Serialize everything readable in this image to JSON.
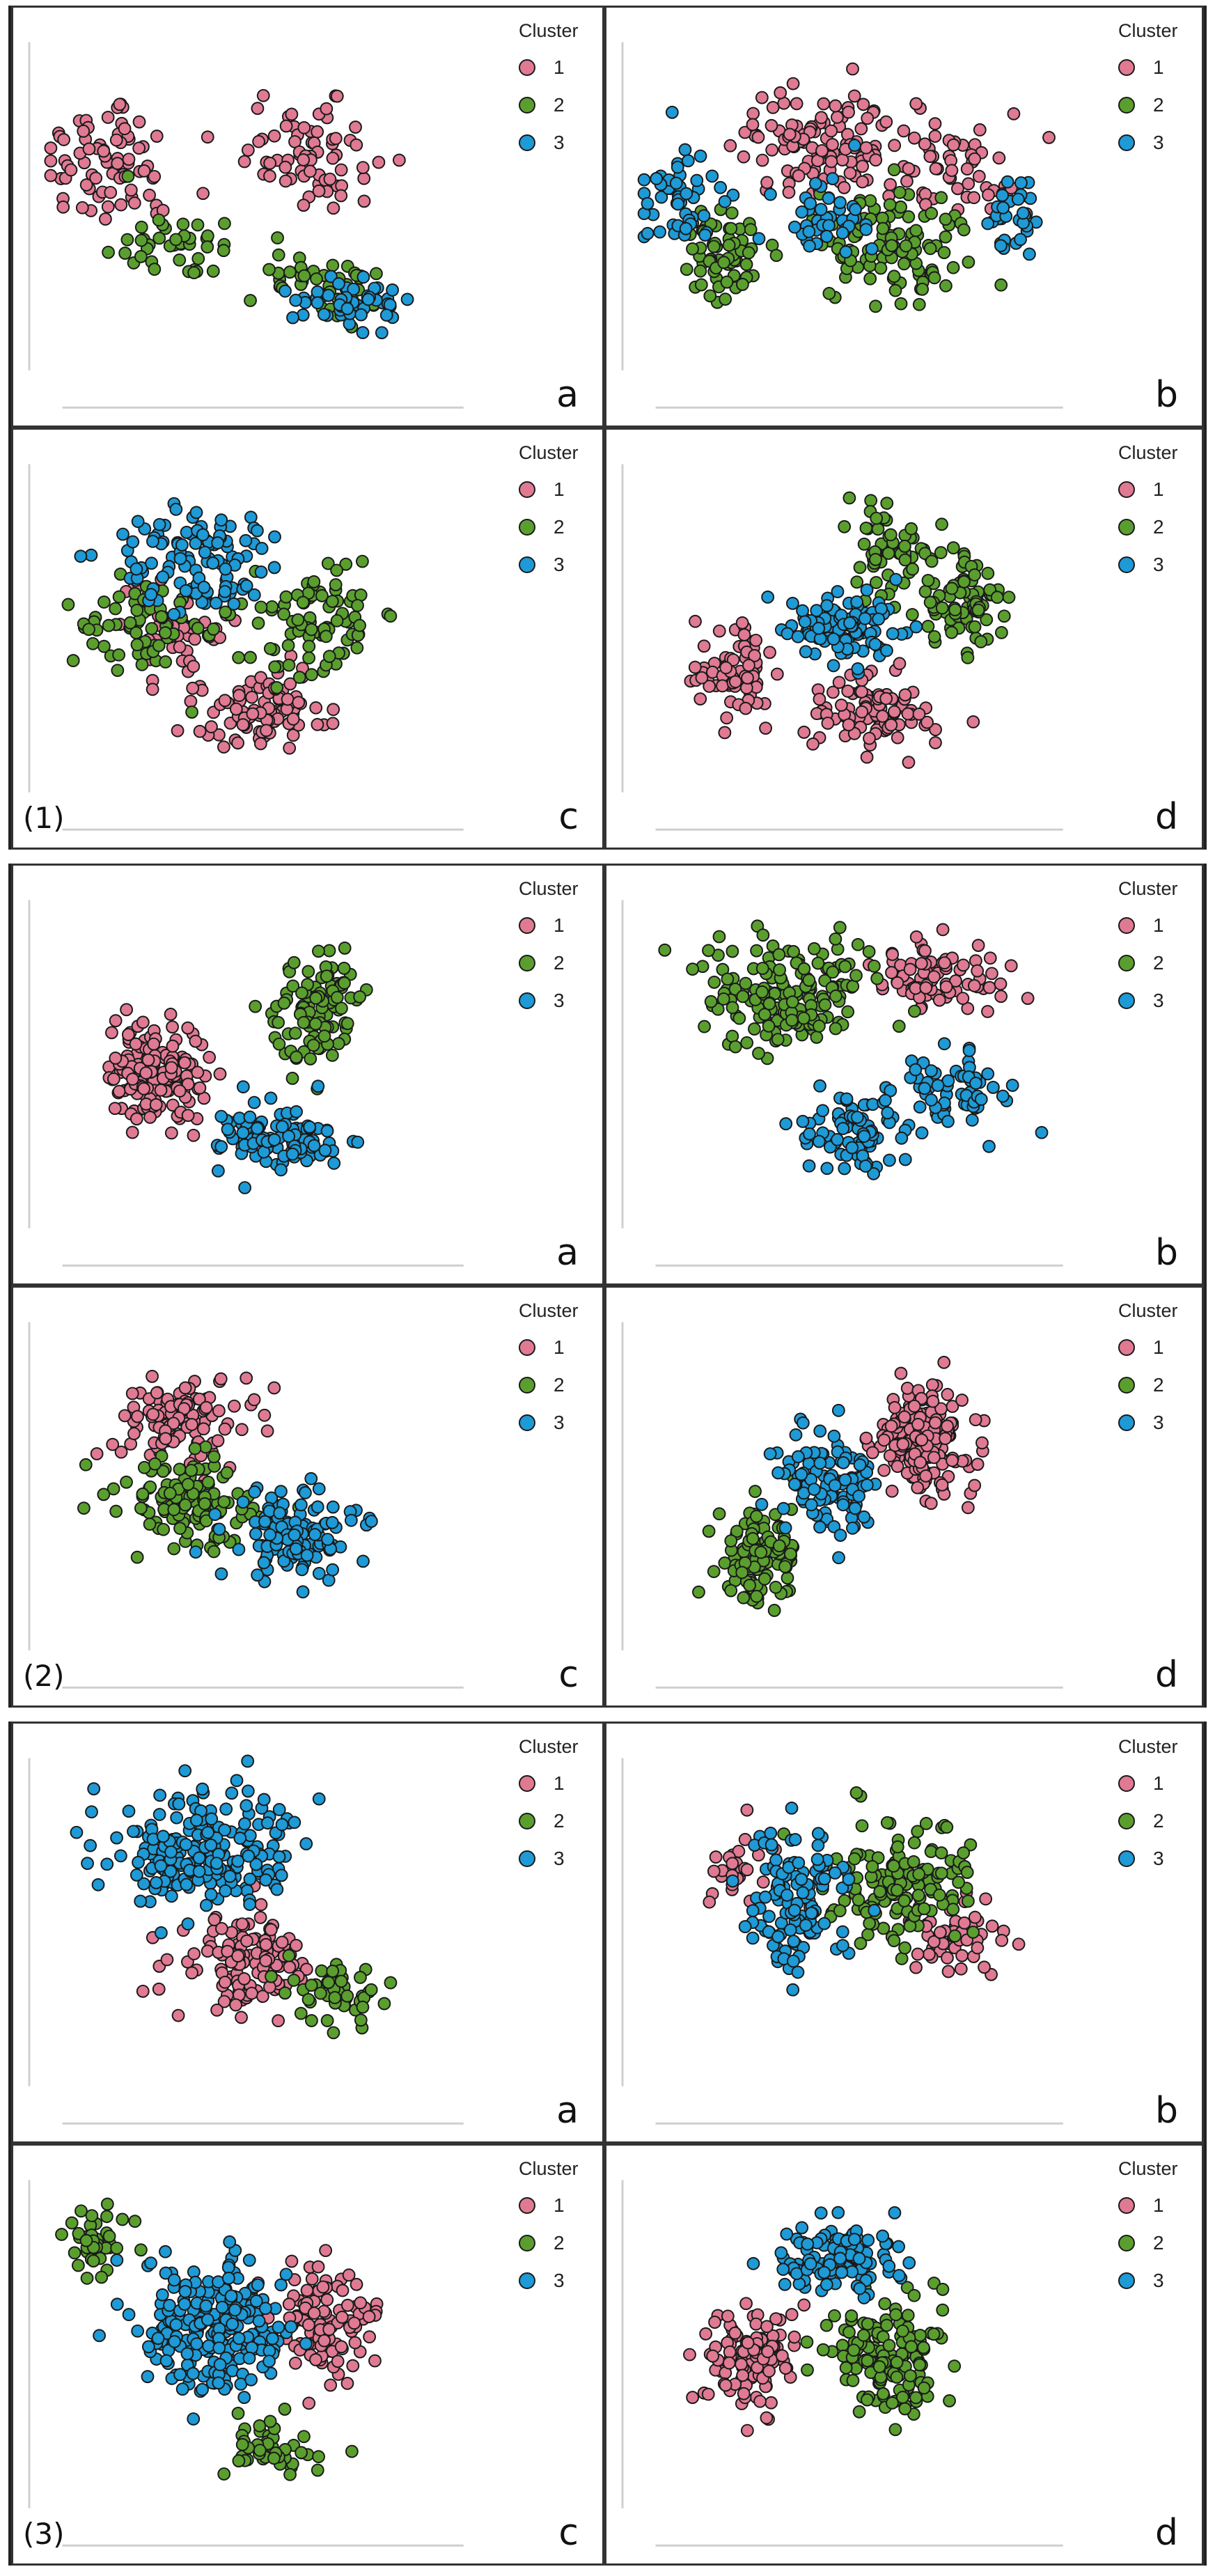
{
  "legend": {
    "title": "Cluster",
    "items": [
      {
        "label": "1",
        "color": "#e07a93"
      },
      {
        "label": "2",
        "color": "#5a9f2e"
      },
      {
        "label": "3",
        "color": "#1e9ad6"
      }
    ]
  },
  "groups": [
    {
      "label": "(1)",
      "panels": [
        {
          "letter": "a"
        },
        {
          "letter": "b"
        },
        {
          "letter": "c"
        },
        {
          "letter": "d"
        }
      ]
    },
    {
      "label": "(2)",
      "panels": [
        {
          "letter": "a"
        },
        {
          "letter": "b"
        },
        {
          "letter": "c"
        },
        {
          "letter": "d"
        }
      ]
    },
    {
      "label": "(3)",
      "panels": [
        {
          "letter": "a"
        },
        {
          "letter": "b"
        },
        {
          "letter": "c"
        },
        {
          "letter": "d"
        }
      ]
    }
  ],
  "chart_data": {
    "type": "scatter",
    "description_clusters": [
      "1",
      "2",
      "3"
    ],
    "panels": [
      {
        "group": "(1)",
        "letter": "a",
        "series": [
          {
            "name": "1",
            "blobs": [
              [
                0.15,
                0.37,
                0.14,
                0.18,
                75
              ],
              [
                0.58,
                0.35,
                0.16,
                0.18,
                70
              ]
            ]
          },
          {
            "name": "2",
            "blobs": [
              [
                0.3,
                0.62,
                0.13,
                0.09,
                40
              ],
              [
                0.62,
                0.72,
                0.12,
                0.1,
                45
              ]
            ]
          },
          {
            "name": "3",
            "blobs": [
              [
                0.67,
                0.78,
                0.1,
                0.07,
                50
              ]
            ]
          }
        ]
      },
      {
        "group": "(1)",
        "letter": "b",
        "series": [
          {
            "name": "1",
            "blobs": [
              [
                0.4,
                0.32,
                0.14,
                0.14,
                110
              ],
              [
                0.68,
                0.38,
                0.14,
                0.13,
                60
              ]
            ]
          },
          {
            "name": "2",
            "blobs": [
              [
                0.2,
                0.63,
                0.1,
                0.13,
                60
              ],
              [
                0.56,
                0.62,
                0.14,
                0.15,
                110
              ]
            ]
          },
          {
            "name": "3",
            "blobs": [
              [
                0.1,
                0.48,
                0.07,
                0.12,
                50
              ],
              [
                0.4,
                0.52,
                0.1,
                0.12,
                40
              ],
              [
                0.82,
                0.52,
                0.08,
                0.1,
                30
              ]
            ]
          }
        ]
      },
      {
        "group": "(1)",
        "letter": "c",
        "series": [
          {
            "name": "1",
            "blobs": [
              [
                0.3,
                0.52,
                0.1,
                0.12,
                50
              ],
              [
                0.48,
                0.74,
                0.13,
                0.11,
                90
              ]
            ]
          },
          {
            "name": "2",
            "blobs": [
              [
                0.22,
                0.5,
                0.12,
                0.13,
                60
              ],
              [
                0.6,
                0.48,
                0.13,
                0.17,
                90
              ]
            ]
          },
          {
            "name": "3",
            "blobs": [
              [
                0.35,
                0.3,
                0.18,
                0.14,
                110
              ]
            ]
          }
        ]
      },
      {
        "group": "(1)",
        "letter": "d",
        "series": [
          {
            "name": "1",
            "blobs": [
              [
                0.22,
                0.65,
                0.08,
                0.13,
                70
              ],
              [
                0.52,
                0.75,
                0.12,
                0.1,
                90
              ]
            ]
          },
          {
            "name": "2",
            "blobs": [
              [
                0.55,
                0.28,
                0.09,
                0.12,
                60
              ],
              [
                0.71,
                0.42,
                0.09,
                0.12,
                80
              ]
            ]
          },
          {
            "name": "3",
            "blobs": [
              [
                0.45,
                0.5,
                0.1,
                0.09,
                110
              ]
            ]
          }
        ]
      },
      {
        "group": "(2)",
        "letter": "a",
        "series": [
          {
            "name": "1",
            "blobs": [
              [
                0.25,
                0.53,
                0.1,
                0.13,
                160
              ]
            ]
          },
          {
            "name": "2",
            "blobs": [
              [
                0.6,
                0.35,
                0.08,
                0.14,
                110
              ]
            ]
          },
          {
            "name": "3",
            "blobs": [
              [
                0.52,
                0.71,
                0.12,
                0.1,
                110
              ]
            ]
          }
        ]
      },
      {
        "group": "(2)",
        "letter": "b",
        "series": [
          {
            "name": "1",
            "blobs": [
              [
                0.66,
                0.25,
                0.12,
                0.09,
                80
              ]
            ]
          },
          {
            "name": "2",
            "blobs": [
              [
                0.33,
                0.3,
                0.18,
                0.14,
                170
              ]
            ]
          },
          {
            "name": "3",
            "blobs": [
              [
                0.48,
                0.7,
                0.12,
                0.12,
                80
              ],
              [
                0.7,
                0.58,
                0.09,
                0.1,
                60
              ]
            ]
          }
        ]
      },
      {
        "group": "(2)",
        "letter": "c",
        "series": [
          {
            "name": "1",
            "blobs": [
              [
                0.3,
                0.3,
                0.15,
                0.12,
                110
              ]
            ]
          },
          {
            "name": "2",
            "blobs": [
              [
                0.33,
                0.55,
                0.14,
                0.12,
                130
              ]
            ]
          },
          {
            "name": "3",
            "blobs": [
              [
                0.55,
                0.64,
                0.14,
                0.12,
                120
              ]
            ]
          }
        ]
      },
      {
        "group": "(2)",
        "letter": "d",
        "series": [
          {
            "name": "1",
            "blobs": [
              [
                0.62,
                0.36,
                0.1,
                0.13,
                180
              ]
            ]
          },
          {
            "name": "2",
            "blobs": [
              [
                0.27,
                0.7,
                0.08,
                0.12,
                110
              ]
            ]
          },
          {
            "name": "3",
            "blobs": [
              [
                0.42,
                0.48,
                0.1,
                0.14,
                100
              ]
            ]
          }
        ]
      },
      {
        "group": "(3)",
        "letter": "a",
        "series": [
          {
            "name": "1",
            "blobs": [
              [
                0.45,
                0.62,
                0.14,
                0.12,
                120
              ]
            ]
          },
          {
            "name": "2",
            "blobs": [
              [
                0.65,
                0.7,
                0.08,
                0.08,
                50
              ]
            ]
          },
          {
            "name": "3",
            "blobs": [
              [
                0.35,
                0.3,
                0.18,
                0.14,
                210
              ]
            ]
          }
        ]
      },
      {
        "group": "(3)",
        "letter": "b",
        "series": [
          {
            "name": "1",
            "blobs": [
              [
                0.22,
                0.35,
                0.06,
                0.1,
                25
              ],
              [
                0.7,
                0.55,
                0.09,
                0.11,
                50
              ]
            ]
          },
          {
            "name": "2",
            "blobs": [
              [
                0.58,
                0.38,
                0.13,
                0.17,
                140
              ]
            ]
          },
          {
            "name": "3",
            "blobs": [
              [
                0.35,
                0.43,
                0.1,
                0.18,
                120
              ]
            ]
          }
        ]
      },
      {
        "group": "(3)",
        "letter": "c",
        "series": [
          {
            "name": "1",
            "blobs": [
              [
                0.62,
                0.43,
                0.1,
                0.16,
                100
              ]
            ]
          },
          {
            "name": "2",
            "blobs": [
              [
                0.12,
                0.2,
                0.06,
                0.08,
                40
              ],
              [
                0.5,
                0.8,
                0.1,
                0.07,
                50
              ]
            ]
          },
          {
            "name": "3",
            "blobs": [
              [
                0.38,
                0.45,
                0.15,
                0.18,
                230
              ]
            ]
          }
        ]
      },
      {
        "group": "(3)",
        "letter": "d",
        "series": [
          {
            "name": "1",
            "blobs": [
              [
                0.25,
                0.55,
                0.09,
                0.12,
                110
              ]
            ]
          },
          {
            "name": "2",
            "blobs": [
              [
                0.55,
                0.55,
                0.11,
                0.14,
                150
              ]
            ]
          },
          {
            "name": "3",
            "blobs": [
              [
                0.43,
                0.25,
                0.12,
                0.09,
                110
              ]
            ]
          }
        ]
      }
    ]
  }
}
